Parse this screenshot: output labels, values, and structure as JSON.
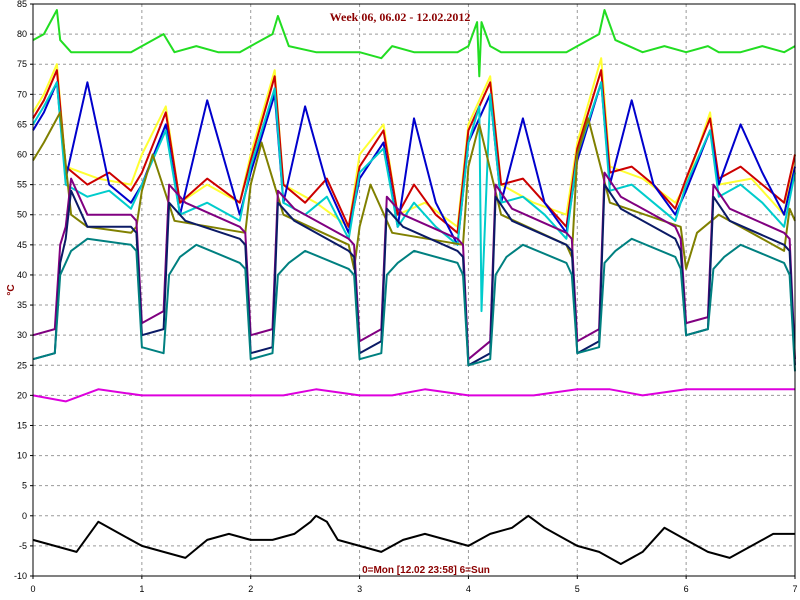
{
  "chart_data": {
    "type": "line",
    "title": "Week 06, 06.02 - 12.02.2012",
    "xlabel": "0=Mon [12.02 23:58] 6=Sun",
    "ylabel": "°C",
    "xlim": [
      0,
      7
    ],
    "ylim": [
      -10,
      85
    ],
    "xticks": [
      0,
      1,
      2,
      3,
      4,
      5,
      6,
      7
    ],
    "yticks": [
      -10,
      -5,
      0,
      5,
      10,
      15,
      20,
      25,
      30,
      35,
      40,
      45,
      50,
      55,
      60,
      65,
      70,
      75,
      80,
      85
    ],
    "grid": true,
    "legend": "none",
    "series": [
      {
        "color": "#22dd22",
        "x": [
          0,
          0.1,
          0.22,
          0.25,
          0.35,
          0.5,
          0.7,
          0.9,
          1.0,
          1.2,
          1.3,
          1.5,
          1.7,
          1.9,
          2.0,
          2.2,
          2.25,
          2.35,
          2.6,
          2.8,
          3.0,
          3.2,
          3.3,
          3.5,
          3.7,
          3.9,
          4.0,
          4.08,
          4.1,
          4.12,
          4.2,
          4.3,
          4.5,
          4.7,
          4.9,
          5.0,
          5.2,
          5.25,
          5.35,
          5.6,
          5.8,
          6.0,
          6.2,
          6.3,
          6.5,
          6.7,
          6.9,
          7.0
        ],
        "y": [
          79,
          80,
          84,
          79,
          77,
          77,
          77,
          77,
          78,
          80,
          77,
          78,
          77,
          77,
          78,
          80,
          83,
          78,
          77,
          77,
          77,
          76,
          78,
          77,
          77,
          77,
          78,
          82,
          73,
          82,
          78,
          77,
          77,
          77,
          77,
          78,
          80,
          84,
          79,
          77,
          78,
          77,
          78,
          77,
          77,
          78,
          77,
          78
        ]
      },
      {
        "color": "#ffff33",
        "x": [
          0,
          0.1,
          0.22,
          0.3,
          0.6,
          0.9,
          1.0,
          1.22,
          1.35,
          1.6,
          1.9,
          2.0,
          2.22,
          2.3,
          2.6,
          2.9,
          3.0,
          3.22,
          3.35,
          3.6,
          3.9,
          4.0,
          4.2,
          4.3,
          4.6,
          4.9,
          5.0,
          5.22,
          5.3,
          5.6,
          5.9,
          6.0,
          6.22,
          6.3,
          6.6,
          6.9,
          7.0
        ],
        "y": [
          67,
          70,
          75,
          58,
          56,
          55,
          60,
          68,
          52,
          55,
          52,
          60,
          74,
          55,
          52,
          48,
          60,
          65,
          50,
          52,
          48,
          65,
          73,
          55,
          52,
          50,
          62,
          76,
          58,
          56,
          52,
          55,
          67,
          55,
          56,
          50,
          60
        ]
      },
      {
        "color": "#cc0000",
        "x": [
          0,
          0.1,
          0.22,
          0.3,
          0.5,
          0.7,
          0.9,
          1.0,
          1.22,
          1.35,
          1.6,
          1.9,
          2.0,
          2.22,
          2.3,
          2.5,
          2.7,
          2.9,
          3.0,
          3.22,
          3.35,
          3.5,
          3.7,
          3.9,
          4.0,
          4.2,
          4.3,
          4.5,
          4.7,
          4.9,
          5.0,
          5.22,
          5.3,
          5.5,
          5.7,
          5.9,
          6.0,
          6.22,
          6.3,
          6.5,
          6.7,
          6.9,
          7.0
        ],
        "y": [
          66,
          69,
          74,
          58,
          55,
          57,
          54,
          57,
          67,
          52,
          56,
          52,
          59,
          73,
          55,
          52,
          56,
          48,
          58,
          64,
          50,
          55,
          50,
          47,
          64,
          72,
          55,
          56,
          52,
          48,
          61,
          74,
          57,
          58,
          55,
          51,
          56,
          66,
          56,
          58,
          55,
          52,
          60
        ]
      },
      {
        "color": "#0000cc",
        "x": [
          0,
          0.1,
          0.22,
          0.3,
          0.5,
          0.7,
          0.9,
          1.0,
          1.22,
          1.35,
          1.6,
          1.9,
          2.0,
          2.22,
          2.3,
          2.5,
          2.7,
          2.9,
          3.0,
          3.22,
          3.35,
          3.5,
          3.7,
          3.9,
          4.0,
          4.2,
          4.3,
          4.5,
          4.7,
          4.9,
          5.0,
          5.22,
          5.3,
          5.5,
          5.7,
          5.9,
          6.0,
          6.22,
          6.3,
          6.5,
          6.7,
          6.9,
          7.0
        ],
        "y": [
          64,
          67,
          72,
          56,
          72,
          55,
          52,
          55,
          65,
          50,
          69,
          50,
          57,
          70,
          52,
          68,
          55,
          47,
          56,
          62,
          48,
          66,
          52,
          45,
          62,
          70,
          52,
          66,
          52,
          47,
          59,
          72,
          55,
          69,
          55,
          50,
          54,
          64,
          55,
          65,
          57,
          50,
          58
        ]
      },
      {
        "color": "#00cccc",
        "x": [
          0,
          0.1,
          0.22,
          0.3,
          0.5,
          0.7,
          0.9,
          1.0,
          1.22,
          1.35,
          1.6,
          1.9,
          2.0,
          2.22,
          2.3,
          2.5,
          2.7,
          2.9,
          3.0,
          3.22,
          3.35,
          3.5,
          3.7,
          3.9,
          4.0,
          4.1,
          4.12,
          4.2,
          4.3,
          4.5,
          4.7,
          4.9,
          5.0,
          5.22,
          5.3,
          5.5,
          5.7,
          5.9,
          6.0,
          6.22,
          6.3,
          6.5,
          6.7,
          6.9,
          7.0
        ],
        "y": [
          65,
          68,
          72,
          55,
          53,
          54,
          51,
          55,
          64,
          50,
          52,
          49,
          58,
          71,
          52,
          50,
          53,
          46,
          57,
          61,
          48,
          52,
          48,
          45,
          62,
          68,
          34,
          70,
          52,
          53,
          50,
          46,
          60,
          72,
          54,
          55,
          52,
          49,
          55,
          64,
          53,
          55,
          52,
          48,
          57
        ]
      },
      {
        "color": "#808000",
        "x": [
          0,
          0.1,
          0.25,
          0.35,
          0.5,
          0.9,
          0.95,
          1.0,
          1.1,
          1.3,
          1.95,
          2.0,
          2.1,
          2.3,
          2.9,
          2.95,
          3.0,
          3.1,
          3.3,
          3.95,
          4.0,
          4.1,
          4.3,
          4.9,
          4.95,
          5.0,
          5.1,
          5.3,
          5.95,
          6.0,
          6.1,
          6.3,
          6.9,
          6.95,
          7.0
        ],
        "y": [
          59,
          62,
          67,
          50,
          48,
          47,
          48,
          54,
          60,
          49,
          47,
          55,
          62,
          50,
          45,
          41,
          48,
          55,
          47,
          45,
          58,
          65,
          50,
          45,
          43,
          60,
          66,
          52,
          48,
          41,
          47,
          50,
          44,
          51,
          49
        ]
      },
      {
        "color": "#800080",
        "x": [
          0,
          0.2,
          0.25,
          0.3,
          0.35,
          0.5,
          0.9,
          0.95,
          1.0,
          1.2,
          1.25,
          1.4,
          1.9,
          1.95,
          2.0,
          2.2,
          2.25,
          2.4,
          2.9,
          2.95,
          3.0,
          3.2,
          3.25,
          3.4,
          3.9,
          3.95,
          4.0,
          4.2,
          4.25,
          4.4,
          4.9,
          4.95,
          5.0,
          5.2,
          5.25,
          5.4,
          5.9,
          5.95,
          6.0,
          6.2,
          6.25,
          6.4,
          6.9,
          6.95,
          7.0
        ],
        "y": [
          30,
          31,
          45,
          48,
          56,
          50,
          50,
          49,
          32,
          34,
          55,
          52,
          48,
          47,
          30,
          31,
          54,
          51,
          46,
          45,
          29,
          31,
          53,
          50,
          46,
          45,
          26,
          29,
          55,
          51,
          47,
          46,
          29,
          31,
          57,
          53,
          48,
          46,
          32,
          33,
          55,
          51,
          47,
          46,
          26
        ]
      },
      {
        "color": "#0b1a66",
        "x": [
          0,
          0.2,
          0.25,
          0.3,
          0.35,
          0.5,
          0.9,
          0.95,
          1.0,
          1.2,
          1.25,
          1.4,
          1.9,
          1.95,
          2.0,
          2.2,
          2.25,
          2.4,
          2.9,
          2.95,
          3.0,
          3.2,
          3.25,
          3.4,
          3.9,
          3.95,
          4.0,
          4.2,
          4.25,
          4.4,
          4.9,
          4.95,
          5.0,
          5.2,
          5.25,
          5.4,
          5.9,
          5.95,
          6.0,
          6.2,
          6.25,
          6.4,
          6.9,
          6.95,
          7.0
        ],
        "y": [
          26,
          27,
          42,
          46,
          54,
          48,
          48,
          47,
          30,
          31,
          52,
          49,
          46,
          45,
          27,
          28,
          52,
          49,
          44,
          43,
          27,
          29,
          51,
          48,
          44,
          43,
          25,
          27,
          53,
          49,
          45,
          44,
          27,
          29,
          55,
          51,
          46,
          44,
          30,
          31,
          53,
          49,
          45,
          44,
          25
        ]
      },
      {
        "color": "#008080",
        "x": [
          0,
          0.2,
          0.25,
          0.35,
          0.5,
          0.9,
          0.95,
          1.0,
          1.2,
          1.25,
          1.35,
          1.5,
          1.9,
          1.95,
          2.0,
          2.2,
          2.25,
          2.35,
          2.5,
          2.9,
          2.95,
          3.0,
          3.2,
          3.25,
          3.35,
          3.5,
          3.9,
          3.95,
          4.0,
          4.2,
          4.25,
          4.35,
          4.5,
          4.9,
          4.95,
          5.0,
          5.2,
          5.25,
          5.35,
          5.5,
          5.9,
          5.95,
          6.0,
          6.2,
          6.25,
          6.35,
          6.5,
          6.9,
          6.95,
          7.0
        ],
        "y": [
          26,
          27,
          40,
          44,
          46,
          45,
          44,
          28,
          27,
          40,
          43,
          45,
          42,
          41,
          26,
          27,
          40,
          42,
          44,
          41,
          40,
          26,
          27,
          40,
          42,
          44,
          42,
          40,
          25,
          26,
          40,
          43,
          45,
          42,
          40,
          27,
          28,
          42,
          44,
          46,
          43,
          41,
          30,
          31,
          41,
          43,
          45,
          42,
          40,
          24
        ]
      },
      {
        "color": "#dd00dd",
        "x": [
          0,
          0.3,
          0.6,
          1.0,
          1.3,
          1.6,
          2.0,
          2.3,
          2.6,
          3.0,
          3.3,
          3.6,
          4.0,
          4.3,
          4.6,
          5.0,
          5.3,
          5.6,
          6.0,
          6.3,
          6.6,
          7.0
        ],
        "y": [
          20,
          19,
          21,
          20,
          20,
          20,
          20,
          20,
          21,
          20,
          20,
          21,
          20,
          20,
          20,
          21,
          21,
          20,
          21,
          21,
          21,
          21
        ]
      },
      {
        "color": "#000000",
        "x": [
          0,
          0.2,
          0.4,
          0.6,
          0.8,
          1.0,
          1.2,
          1.4,
          1.6,
          1.8,
          2.0,
          2.2,
          2.4,
          2.55,
          2.6,
          2.7,
          2.8,
          3.0,
          3.2,
          3.4,
          3.6,
          3.8,
          4.0,
          4.2,
          4.4,
          4.55,
          4.7,
          4.9,
          5.0,
          5.2,
          5.4,
          5.6,
          5.8,
          6.0,
          6.2,
          6.4,
          6.6,
          6.8,
          7.0
        ],
        "y": [
          -4,
          -5,
          -6,
          -1,
          -3,
          -5,
          -6,
          -7,
          -4,
          -3,
          -4,
          -4,
          -3,
          -1,
          0,
          -1,
          -4,
          -5,
          -6,
          -4,
          -3,
          -4,
          -5,
          -3,
          -2,
          0,
          -2,
          -4,
          -5,
          -6,
          -8,
          -6,
          -2,
          -4,
          -6,
          -7,
          -5,
          -3,
          -3
        ]
      }
    ]
  }
}
